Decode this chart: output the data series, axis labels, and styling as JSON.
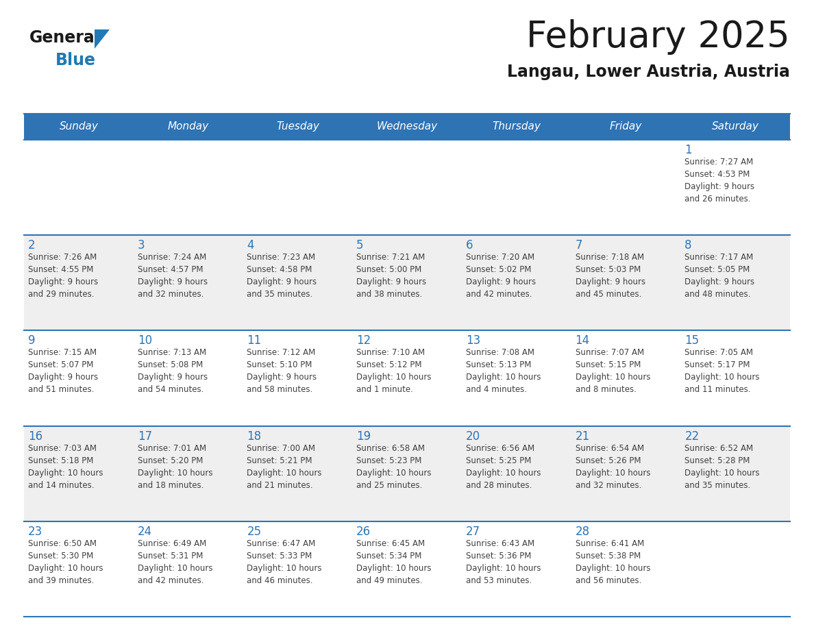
{
  "title": "February 2025",
  "subtitle": "Langau, Lower Austria, Austria",
  "days_of_week": [
    "Sunday",
    "Monday",
    "Tuesday",
    "Wednesday",
    "Thursday",
    "Friday",
    "Saturday"
  ],
  "header_bg": "#2E74B5",
  "header_text": "#FFFFFF",
  "cell_bg_even": "#FFFFFF",
  "cell_bg_odd": "#EFEFEF",
  "border_color": "#2E74B5",
  "day_num_color": "#2E74B5",
  "text_color": "#404040",
  "title_color": "#1A1A1A",
  "logo_general_color": "#1A1A1A",
  "logo_blue_color": "#2179B5",
  "weeks": [
    [
      {
        "day": null,
        "info": null
      },
      {
        "day": null,
        "info": null
      },
      {
        "day": null,
        "info": null
      },
      {
        "day": null,
        "info": null
      },
      {
        "day": null,
        "info": null
      },
      {
        "day": null,
        "info": null
      },
      {
        "day": 1,
        "info": "Sunrise: 7:27 AM\nSunset: 4:53 PM\nDaylight: 9 hours\nand 26 minutes."
      }
    ],
    [
      {
        "day": 2,
        "info": "Sunrise: 7:26 AM\nSunset: 4:55 PM\nDaylight: 9 hours\nand 29 minutes."
      },
      {
        "day": 3,
        "info": "Sunrise: 7:24 AM\nSunset: 4:57 PM\nDaylight: 9 hours\nand 32 minutes."
      },
      {
        "day": 4,
        "info": "Sunrise: 7:23 AM\nSunset: 4:58 PM\nDaylight: 9 hours\nand 35 minutes."
      },
      {
        "day": 5,
        "info": "Sunrise: 7:21 AM\nSunset: 5:00 PM\nDaylight: 9 hours\nand 38 minutes."
      },
      {
        "day": 6,
        "info": "Sunrise: 7:20 AM\nSunset: 5:02 PM\nDaylight: 9 hours\nand 42 minutes."
      },
      {
        "day": 7,
        "info": "Sunrise: 7:18 AM\nSunset: 5:03 PM\nDaylight: 9 hours\nand 45 minutes."
      },
      {
        "day": 8,
        "info": "Sunrise: 7:17 AM\nSunset: 5:05 PM\nDaylight: 9 hours\nand 48 minutes."
      }
    ],
    [
      {
        "day": 9,
        "info": "Sunrise: 7:15 AM\nSunset: 5:07 PM\nDaylight: 9 hours\nand 51 minutes."
      },
      {
        "day": 10,
        "info": "Sunrise: 7:13 AM\nSunset: 5:08 PM\nDaylight: 9 hours\nand 54 minutes."
      },
      {
        "day": 11,
        "info": "Sunrise: 7:12 AM\nSunset: 5:10 PM\nDaylight: 9 hours\nand 58 minutes."
      },
      {
        "day": 12,
        "info": "Sunrise: 7:10 AM\nSunset: 5:12 PM\nDaylight: 10 hours\nand 1 minute."
      },
      {
        "day": 13,
        "info": "Sunrise: 7:08 AM\nSunset: 5:13 PM\nDaylight: 10 hours\nand 4 minutes."
      },
      {
        "day": 14,
        "info": "Sunrise: 7:07 AM\nSunset: 5:15 PM\nDaylight: 10 hours\nand 8 minutes."
      },
      {
        "day": 15,
        "info": "Sunrise: 7:05 AM\nSunset: 5:17 PM\nDaylight: 10 hours\nand 11 minutes."
      }
    ],
    [
      {
        "day": 16,
        "info": "Sunrise: 7:03 AM\nSunset: 5:18 PM\nDaylight: 10 hours\nand 14 minutes."
      },
      {
        "day": 17,
        "info": "Sunrise: 7:01 AM\nSunset: 5:20 PM\nDaylight: 10 hours\nand 18 minutes."
      },
      {
        "day": 18,
        "info": "Sunrise: 7:00 AM\nSunset: 5:21 PM\nDaylight: 10 hours\nand 21 minutes."
      },
      {
        "day": 19,
        "info": "Sunrise: 6:58 AM\nSunset: 5:23 PM\nDaylight: 10 hours\nand 25 minutes."
      },
      {
        "day": 20,
        "info": "Sunrise: 6:56 AM\nSunset: 5:25 PM\nDaylight: 10 hours\nand 28 minutes."
      },
      {
        "day": 21,
        "info": "Sunrise: 6:54 AM\nSunset: 5:26 PM\nDaylight: 10 hours\nand 32 minutes."
      },
      {
        "day": 22,
        "info": "Sunrise: 6:52 AM\nSunset: 5:28 PM\nDaylight: 10 hours\nand 35 minutes."
      }
    ],
    [
      {
        "day": 23,
        "info": "Sunrise: 6:50 AM\nSunset: 5:30 PM\nDaylight: 10 hours\nand 39 minutes."
      },
      {
        "day": 24,
        "info": "Sunrise: 6:49 AM\nSunset: 5:31 PM\nDaylight: 10 hours\nand 42 minutes."
      },
      {
        "day": 25,
        "info": "Sunrise: 6:47 AM\nSunset: 5:33 PM\nDaylight: 10 hours\nand 46 minutes."
      },
      {
        "day": 26,
        "info": "Sunrise: 6:45 AM\nSunset: 5:34 PM\nDaylight: 10 hours\nand 49 minutes."
      },
      {
        "day": 27,
        "info": "Sunrise: 6:43 AM\nSunset: 5:36 PM\nDaylight: 10 hours\nand 53 minutes."
      },
      {
        "day": 28,
        "info": "Sunrise: 6:41 AM\nSunset: 5:38 PM\nDaylight: 10 hours\nand 56 minutes."
      },
      {
        "day": null,
        "info": null
      }
    ]
  ]
}
